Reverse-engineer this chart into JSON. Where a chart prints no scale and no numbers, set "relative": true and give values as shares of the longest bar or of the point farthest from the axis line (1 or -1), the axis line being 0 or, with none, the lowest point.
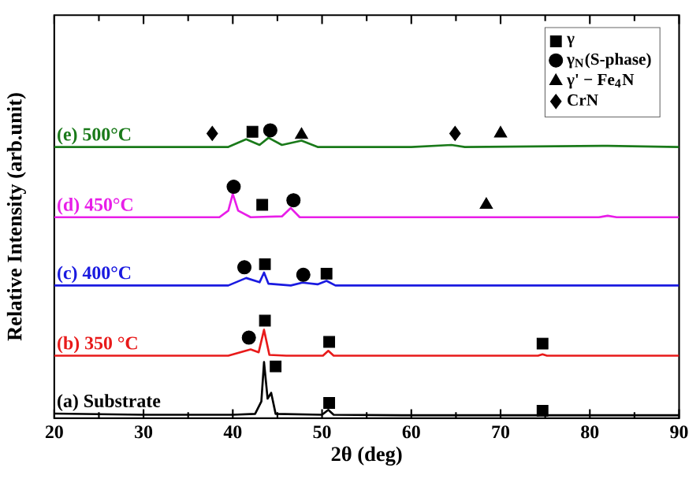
{
  "chart_data": {
    "type": "line",
    "xlabel": "2θ (deg)",
    "ylabel": "Relative Intensity (arb.unit)",
    "relative": true,
    "xlim": [
      20,
      90
    ],
    "xticks": [
      20,
      30,
      40,
      50,
      60,
      70,
      80,
      90
    ],
    "tick_labels": "x",
    "grid": false,
    "legend": "top right",
    "series": [
      {
        "name": "(a) Substrate",
        "color": "#000000",
        "marker": "none",
        "x": [
          20,
          30,
          40,
          42.5,
          43.2,
          43.5,
          43.9,
          44.3,
          44.8,
          50.0,
          50.7,
          51.3,
          60,
          74.2,
          74.7,
          75.2,
          90
        ],
        "values": [
          0.016,
          0.012,
          0.012,
          0.015,
          0.058,
          0.195,
          0.068,
          0.088,
          0.015,
          0.012,
          0.029,
          0.012,
          0.01,
          0.01,
          0.015,
          0.01,
          0.01
        ]
      },
      {
        "name": "(b) 350 °C",
        "color": "#e81a1a",
        "marker": "none",
        "x": [
          20,
          39.5,
          42.0,
          42.9,
          43.5,
          44.1,
          46,
          50.1,
          50.7,
          51.3,
          74.2,
          74.7,
          75.2,
          90
        ],
        "values": [
          0.217,
          0.217,
          0.239,
          0.229,
          0.307,
          0.22,
          0.217,
          0.217,
          0.234,
          0.217,
          0.217,
          0.222,
          0.217,
          0.217
        ]
      },
      {
        "name": "(c) 400°C",
        "color": "#1a1ae0",
        "marker": "none",
        "x": [
          20,
          39.5,
          41.5,
          43.0,
          43.5,
          44.0,
          46.5,
          47.8,
          49.5,
          50.5,
          51.5,
          90
        ],
        "values": [
          0.461,
          0.461,
          0.487,
          0.472,
          0.506,
          0.467,
          0.461,
          0.471,
          0.465,
          0.477,
          0.461,
          0.461
        ]
      },
      {
        "name": "(d) 450°C",
        "color": "#e81ee8",
        "marker": "none",
        "x": [
          20,
          38.5,
          39.5,
          40.0,
          40.6,
          42,
          45.5,
          46.5,
          47.5,
          60,
          81,
          82,
          83,
          90
        ],
        "values": [
          0.698,
          0.698,
          0.721,
          0.779,
          0.721,
          0.698,
          0.701,
          0.73,
          0.698,
          0.698,
          0.698,
          0.703,
          0.698,
          0.698
        ]
      },
      {
        "name": "(e) 500°C",
        "color": "#1a7a1a",
        "marker": "none",
        "x": [
          20,
          39.5,
          41.5,
          43.0,
          44.0,
          45.5,
          47.7,
          49.5,
          60,
          64.5,
          66,
          82,
          90
        ],
        "values": [
          0.942,
          0.942,
          0.969,
          0.949,
          0.974,
          0.949,
          0.964,
          0.942,
          0.942,
          0.949,
          0.942,
          0.946,
          0.942
        ]
      },
      {
        "name": "γ",
        "type": "scatter",
        "color": "#000000",
        "marker": "square",
        "x": [
          44.8,
          50.8,
          74.7,
          43.6,
          50.8,
          74.7,
          43.6,
          50.5,
          43.3,
          42.2
        ],
        "values": [
          0.18,
          0.053,
          0.026,
          0.339,
          0.265,
          0.259,
          0.535,
          0.502,
          0.741,
          0.995
        ]
      },
      {
        "name": "γ$_{N}$(S-phase)",
        "type": "scatter",
        "color": "#000000",
        "marker": "circle",
        "x": [
          41.8,
          41.3,
          47.9,
          40.1,
          46.8,
          44.2
        ],
        "values": [
          0.28,
          0.524,
          0.498,
          0.804,
          0.757,
          1.0
        ]
      },
      {
        "name": "γ' − Fe$_{4}$N",
        "type": "scatter",
        "color": "#000000",
        "marker": "triangle",
        "x": [
          47.7,
          70.0,
          68.4
        ],
        "values": [
          0.984,
          0.989,
          0.741
        ]
      },
      {
        "name": "CrN",
        "type": "scatter",
        "color": "#000000",
        "marker": "diamond",
        "x": [
          37.7,
          64.9
        ],
        "values": [
          0.989,
          0.989
        ]
      }
    ]
  }
}
